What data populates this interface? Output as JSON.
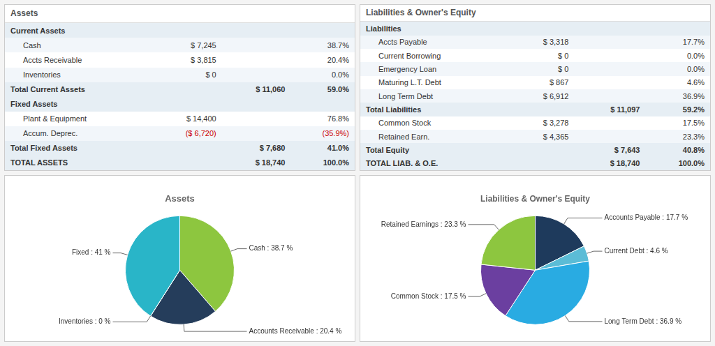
{
  "chart_data": [
    {
      "type": "table",
      "title": "Assets",
      "categories": [
        "Current Assets",
        "Cash",
        "Accts Receivable",
        "Inventories",
        "Total Current Assets",
        "Fixed Assets",
        "Plant & Equipment",
        "Accum. Deprec.",
        "Total Fixed Assets",
        "TOTAL ASSETS"
      ],
      "series": [
        {
          "values": [
            null,
            7245,
            3815,
            0,
            null,
            null,
            14400,
            -6720,
            null,
            null
          ],
          "value_labels": [
            null,
            "$ 7,245",
            "$ 3,815",
            "$ 0",
            null,
            null,
            "$ 14,400",
            "($ 6,720)",
            null,
            null
          ],
          "colors": [
            "#333333",
            "#333333",
            "#333333",
            "#333333",
            "#333333",
            "#333333",
            "#333333",
            "#cc0000",
            "#333333",
            "#333333"
          ]
        },
        {
          "values": [
            null,
            null,
            null,
            null,
            11060,
            null,
            null,
            null,
            7680,
            18740
          ],
          "value_labels": [
            null,
            null,
            null,
            null,
            "$ 11,060",
            null,
            null,
            null,
            "$ 7,680",
            "$ 18,740"
          ]
        },
        {
          "values": [
            null,
            38.7,
            20.4,
            0.0,
            59.0,
            null,
            76.8,
            -35.9,
            41.0,
            100.0
          ],
          "value_labels": [
            null,
            "38.7%",
            "20.4%",
            "0.0%",
            "59.0%",
            null,
            "76.8%",
            "(35.9%)",
            "41.0%",
            "100.0%"
          ],
          "colors": [
            "#333333",
            "#333333",
            "#333333",
            "#333333",
            "#333333",
            "#333333",
            "#333333",
            "#cc0000",
            "#333333",
            "#333333"
          ]
        }
      ]
    },
    {
      "type": "table",
      "title": "Liabilities & Owner's Equity",
      "categories": [
        "Liabilities",
        "Accts Payable",
        "Current Borrowing",
        "Emergency Loan",
        "Maturing L.T. Debt",
        "Long Term Debt",
        "Total Liabilities",
        "Common Stock",
        "Retained Earn.",
        "Total Equity",
        "TOTAL LIAB. & O.E."
      ],
      "series": [
        {
          "values": [
            null,
            3318,
            0,
            0,
            867,
            6912,
            null,
            3278,
            4365,
            null,
            null
          ],
          "value_labels": [
            null,
            "$ 3,318",
            "$ 0",
            "$ 0",
            "$ 867",
            "$ 6,912",
            null,
            "$ 3,278",
            "$ 4,365",
            null,
            null
          ]
        },
        {
          "values": [
            null,
            null,
            null,
            null,
            null,
            null,
            11097,
            null,
            null,
            7643,
            18740
          ],
          "value_labels": [
            null,
            null,
            null,
            null,
            null,
            null,
            "$ 11,097",
            null,
            null,
            "$ 7,643",
            "$ 18,740"
          ]
        },
        {
          "values": [
            null,
            17.7,
            0.0,
            0.0,
            4.6,
            36.9,
            59.2,
            17.5,
            23.3,
            40.8,
            100.0
          ],
          "value_labels": [
            null,
            "17.7%",
            "0.0%",
            "0.0%",
            "4.6%",
            "36.9%",
            "59.2%",
            "17.5%",
            "23.3%",
            "40.8%",
            "100.0%"
          ]
        }
      ]
    },
    {
      "type": "pie",
      "title": "Assets",
      "categories": [
        "Cash : 38.7 %",
        "Accounts Receivable : 20.4 %",
        "Inventories : 0 %",
        "Fixed : 41 %"
      ],
      "values": [
        38.7,
        20.4,
        0.001,
        41.0
      ],
      "colors": [
        "#8dc63f",
        "#253d5b",
        "#29abe2",
        "#29b5c8"
      ]
    },
    {
      "type": "pie",
      "title": "Liabilities & Owner's Equity",
      "categories": [
        "Accounts Payable : 17.7 %",
        "Current Debt : 4.6 %",
        "Long Term Debt : 36.9 %",
        "Common Stock : 17.5 %",
        "Retained Earnings : 23.3 %"
      ],
      "values": [
        17.7,
        4.6,
        36.9,
        17.5,
        23.3
      ],
      "colors": [
        "#1e3a5c",
        "#5bbcd6",
        "#29abe2",
        "#6b3fa0",
        "#8dc63f"
      ]
    }
  ]
}
